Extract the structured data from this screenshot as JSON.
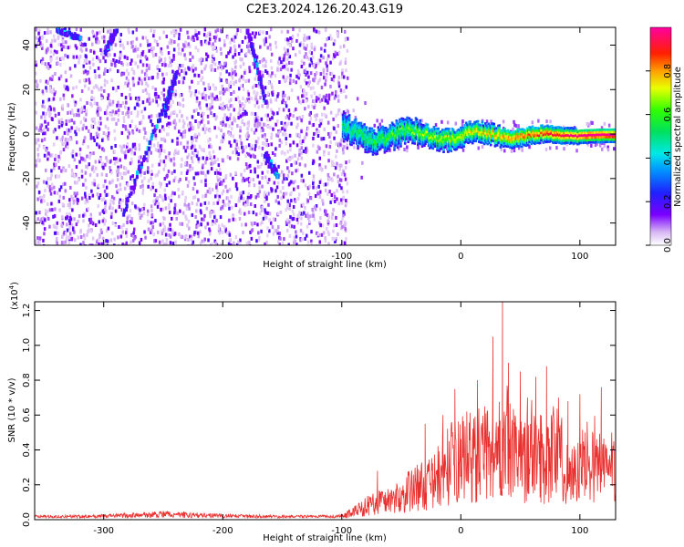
{
  "title": "C2E3.2024.126.20.43.G19",
  "chart_data": [
    {
      "type": "heatmap",
      "xlabel": "Height of straight line (km)",
      "ylabel": "Frequency (Hz)",
      "xlim": [
        -358,
        130
      ],
      "ylim": [
        -50,
        48
      ],
      "xticks": [
        -300,
        -200,
        -100,
        0,
        100
      ],
      "yticks": [
        -40,
        -20,
        0,
        20,
        40
      ],
      "colorbar": {
        "label": "Normalized spectral amplitude",
        "range": [
          0,
          1
        ],
        "ticks": [
          "0.0",
          "0.2",
          "0.4",
          "0.6",
          "0.8"
        ],
        "tick_values": [
          0,
          0.2,
          0.4,
          0.6,
          0.8
        ]
      },
      "features": {
        "noise_region_x": [
          -358,
          -100
        ],
        "signal_line": {
          "x_start": -100,
          "x_end": 130,
          "frequency": 0,
          "peak_amplitude": 1.0
        },
        "streaks": [
          {
            "x": [
              -300,
              -290
            ],
            "y": [
              38,
              48
            ]
          },
          {
            "x": [
              -285,
              -240
            ],
            "y": [
              -35,
              28
            ]
          },
          {
            "x": [
              -250,
              -240
            ],
            "y": [
              10,
              28
            ]
          },
          {
            "x": [
              -180,
              -165
            ],
            "y": [
              48,
              15
            ]
          },
          {
            "x": [
              -165,
              -155
            ],
            "y": [
              -8,
              -18
            ]
          },
          {
            "x": [
              -340,
              -320
            ],
            "y": [
              48,
              44
            ]
          }
        ]
      }
    },
    {
      "type": "line",
      "xlabel": "Height of straight line (km)",
      "ylabel": "SNR (10 * v/v)",
      "ylabel_exponent": "(x10",
      "ylabel_exponent_sup": "4",
      "ylabel_exponent_close": ")",
      "xlim": [
        -358,
        130
      ],
      "ylim": [
        0,
        1.25
      ],
      "xticks": [
        -300,
        -200,
        -100,
        0,
        100
      ],
      "yticks": [
        0.0,
        0.2,
        0.4,
        0.6,
        0.8,
        1.0,
        1.2
      ],
      "ytick_labels": [
        "0.0",
        "0.2",
        "0.4",
        "0.6",
        "0.8",
        "1.0",
        "1.2"
      ],
      "series": [
        {
          "color": "#e8312f",
          "envelope": [
            [
              -358,
              0.02
            ],
            [
              -300,
              0.025
            ],
            [
              -250,
              0.05
            ],
            [
              -200,
              0.03
            ],
            [
              -150,
              0.02
            ],
            [
              -110,
              0.02
            ],
            [
              -100,
              0.03
            ],
            [
              -90,
              0.08
            ],
            [
              -70,
              0.18
            ],
            [
              -50,
              0.22
            ],
            [
              -40,
              0.32
            ],
            [
              -25,
              0.35
            ],
            [
              -10,
              0.55
            ],
            [
              0,
              0.6
            ],
            [
              10,
              0.62
            ],
            [
              20,
              0.66
            ],
            [
              30,
              0.62
            ],
            [
              35,
              1.25
            ],
            [
              40,
              0.68
            ],
            [
              50,
              0.58
            ],
            [
              60,
              0.7
            ],
            [
              70,
              0.6
            ],
            [
              80,
              0.72
            ],
            [
              90,
              0.45
            ],
            [
              100,
              0.5
            ],
            [
              110,
              0.65
            ],
            [
              120,
              0.5
            ],
            [
              130,
              0.55
            ]
          ],
          "spikes": [
            [
              35,
              1.25
            ],
            [
              27,
              1.05
            ],
            [
              40,
              0.9
            ],
            [
              72,
              0.88
            ],
            [
              50,
              0.85
            ],
            [
              63,
              0.82
            ],
            [
              -5,
              0.75
            ],
            [
              14,
              0.8
            ],
            [
              -30,
              0.55
            ],
            [
              -70,
              0.28
            ],
            [
              100,
              0.72
            ],
            [
              90,
              0.68
            ],
            [
              -15,
              0.6
            ],
            [
              5,
              0.62
            ],
            [
              118,
              0.76
            ],
            [
              56,
              0.7
            ],
            [
              82,
              0.7
            ]
          ]
        }
      ]
    }
  ]
}
